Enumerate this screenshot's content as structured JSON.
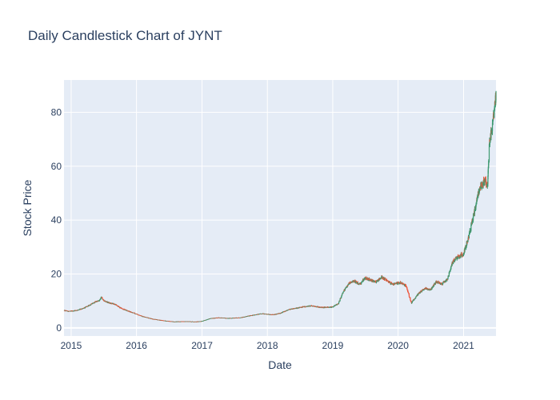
{
  "chart_data": {
    "type": "candlestick",
    "title": "Daily Candlestick Chart of JYNT",
    "xlabel": "Date",
    "ylabel": "Stock Price",
    "x_tick_labels": [
      "2015",
      "2016",
      "2017",
      "2018",
      "2019",
      "2020",
      "2021"
    ],
    "y_tick_labels": [
      "0",
      "20",
      "40",
      "60",
      "80"
    ],
    "y_ticks": [
      0,
      20,
      40,
      60,
      80
    ],
    "xlim": [
      "2014-11-22",
      "2021-07-01"
    ],
    "ylim": [
      -3,
      92
    ],
    "grid": true,
    "increasing_color": "#3d9970",
    "decreasing_color": "#ef553b",
    "plot_bgcolor": "#e5ecf6",
    "price_path": [
      [
        "2014-11-22",
        6.5
      ],
      [
        "2014-12-15",
        6.2
      ],
      [
        "2015-01-15",
        6.3
      ],
      [
        "2015-02-15",
        6.8
      ],
      [
        "2015-03-15",
        7.4
      ],
      [
        "2015-04-15",
        8.5
      ],
      [
        "2015-05-15",
        9.6
      ],
      [
        "2015-06-10",
        10.3
      ],
      [
        "2015-06-20",
        11.5
      ],
      [
        "2015-07-01",
        10.2
      ],
      [
        "2015-08-01",
        9.3
      ],
      [
        "2015-09-01",
        8.8
      ],
      [
        "2015-10-01",
        7.5
      ],
      [
        "2015-11-01",
        6.6
      ],
      [
        "2015-12-15",
        5.6
      ],
      [
        "2016-02-01",
        4.3
      ],
      [
        "2016-04-01",
        3.3
      ],
      [
        "2016-06-01",
        2.7
      ],
      [
        "2016-08-01",
        2.3
      ],
      [
        "2016-10-01",
        2.4
      ],
      [
        "2016-12-01",
        2.3
      ],
      [
        "2017-01-01",
        2.5
      ],
      [
        "2017-02-15",
        3.5
      ],
      [
        "2017-04-01",
        3.8
      ],
      [
        "2017-06-01",
        3.6
      ],
      [
        "2017-08-01",
        3.8
      ],
      [
        "2017-10-01",
        4.6
      ],
      [
        "2017-12-01",
        5.3
      ],
      [
        "2018-02-01",
        4.9
      ],
      [
        "2018-03-15",
        5.5
      ],
      [
        "2018-05-01",
        6.8
      ],
      [
        "2018-07-01",
        7.6
      ],
      [
        "2018-09-01",
        8.2
      ],
      [
        "2018-11-01",
        7.6
      ],
      [
        "2019-01-01",
        7.8
      ],
      [
        "2019-02-01",
        9.0
      ],
      [
        "2019-03-01",
        13.5
      ],
      [
        "2019-04-01",
        16.5
      ],
      [
        "2019-05-01",
        17.5
      ],
      [
        "2019-06-01",
        16.2
      ],
      [
        "2019-07-01",
        18.5
      ],
      [
        "2019-08-01",
        17.8
      ],
      [
        "2019-09-01",
        17.0
      ],
      [
        "2019-10-01",
        18.8
      ],
      [
        "2019-11-01",
        17.6
      ],
      [
        "2019-12-01",
        16.2
      ],
      [
        "2020-01-15",
        16.8
      ],
      [
        "2020-02-15",
        15.6
      ],
      [
        "2020-03-15",
        9.2
      ],
      [
        "2020-04-01",
        10.8
      ],
      [
        "2020-05-01",
        13.2
      ],
      [
        "2020-06-01",
        14.8
      ],
      [
        "2020-07-01",
        14.1
      ],
      [
        "2020-08-01",
        17.2
      ],
      [
        "2020-09-01",
        16.3
      ],
      [
        "2020-10-01",
        17.8
      ],
      [
        "2020-11-01",
        24.5
      ],
      [
        "2020-12-01",
        26.3
      ],
      [
        "2021-01-01",
        27.5
      ],
      [
        "2021-02-01",
        34.5
      ],
      [
        "2021-03-01",
        42.5
      ],
      [
        "2021-04-01",
        52.0
      ],
      [
        "2021-05-01",
        55.0
      ],
      [
        "2021-05-15",
        52.0
      ],
      [
        "2021-05-25",
        69.0
      ],
      [
        "2021-06-10",
        74.0
      ],
      [
        "2021-06-25",
        84.0
      ],
      [
        "2021-07-01",
        86.0
      ]
    ]
  }
}
